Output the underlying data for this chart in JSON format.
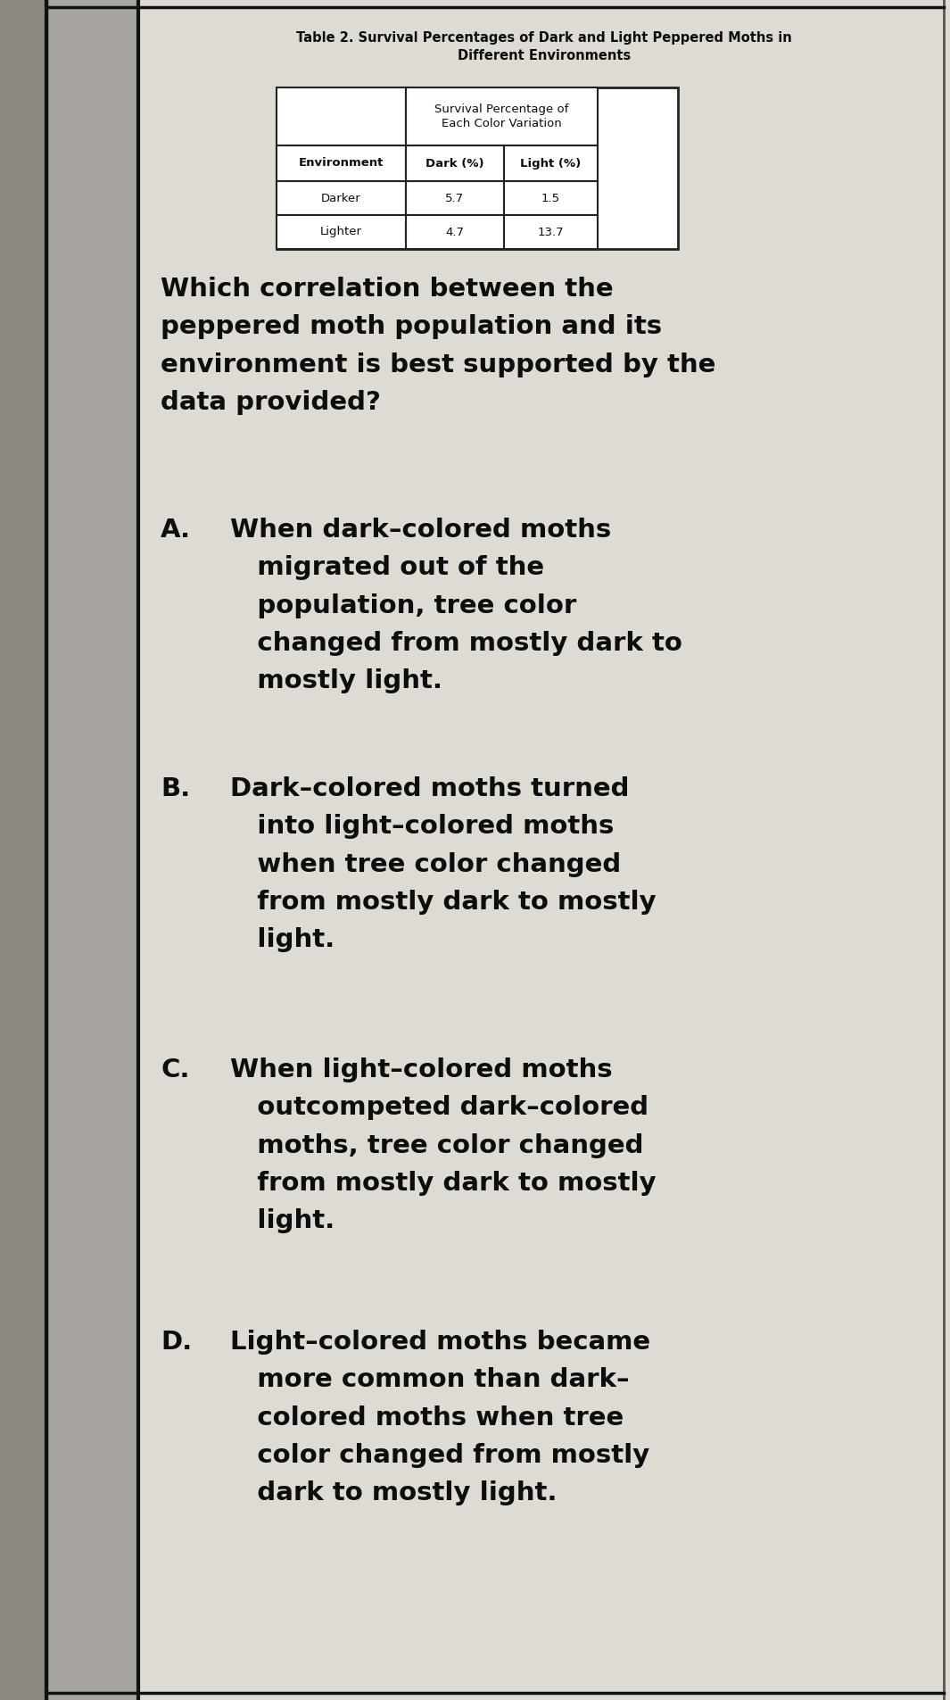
{
  "table_title": "Table 2. Survival Percentages of Dark and Light Peppered Moths in\nDifferent Environments",
  "table_header_span": "Survival Percentage of\nEach Color Variation",
  "table_col_headers": [
    "Environment",
    "Dark (%)",
    "Light (%)"
  ],
  "table_data": [
    [
      "Darker",
      "5.7",
      "1.5"
    ],
    [
      "Lighter",
      "4.7",
      "13.7"
    ]
  ],
  "question": "Which correlation between the\npeppered moth population and its\nenvironment is best supported by the\ndata provided?",
  "choices": [
    {
      "label": "A.",
      "text": "When dark–colored moths\n   migrated out of the\n   population, tree color\n   changed from mostly dark to\n   mostly light."
    },
    {
      "label": "B.",
      "text": "Dark–colored moths turned\n   into light–colored moths\n   when tree color changed\n   from mostly dark to mostly\n   light."
    },
    {
      "label": "C.",
      "text": "When light–colored moths\n   outcompeted dark–colored\n   moths, tree color changed\n   from mostly dark to mostly\n   light."
    },
    {
      "label": "D.",
      "text": "Light–colored moths became\n   more common than dark–\n   colored moths when tree\n   color changed from mostly\n   dark to mostly light."
    }
  ],
  "bg_color": "#cccac4",
  "paper_color": "#e4e1db",
  "content_bg": "#dedad4",
  "border_color": "#1a1a1a",
  "text_color": "#0d0d0d",
  "table_border_color": "#222222",
  "sidebar_dark": "#8a8880",
  "sidebar_mid": "#a8a5a0",
  "sidebar_light": "#c0bdb8"
}
